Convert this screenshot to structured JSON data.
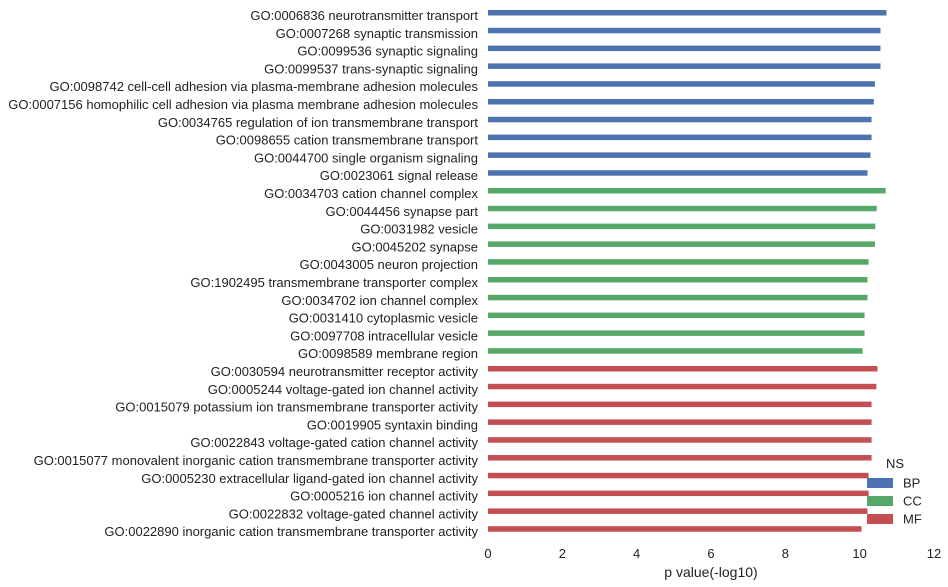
{
  "chart_data": {
    "type": "bar",
    "orientation": "horizontal",
    "xlabel": "p value(-log10)",
    "ylabel": "",
    "xlim": [
      0,
      12
    ],
    "xticks": [
      0,
      2,
      4,
      6,
      8,
      10,
      12
    ],
    "grid": false,
    "legend": {
      "title": "NS",
      "placement": "lower-right",
      "entries": [
        {
          "name": "BP",
          "color": "#4c72b0"
        },
        {
          "name": "CC",
          "color": "#55a868"
        },
        {
          "name": "MF",
          "color": "#c44e52"
        }
      ]
    },
    "categories": [
      {
        "label": "GO:0006836 neurotransmitter transport",
        "group": "BP",
        "value": 10.72
      },
      {
        "label": "GO:0007268 synaptic transmission",
        "group": "BP",
        "value": 10.56
      },
      {
        "label": "GO:0099536 synaptic signaling",
        "group": "BP",
        "value": 10.56
      },
      {
        "label": "GO:0099537 trans-synaptic signaling",
        "group": "BP",
        "value": 10.56
      },
      {
        "label": "GO:0098742 cell-cell adhesion via plasma-membrane adhesion molecules",
        "group": "BP",
        "value": 10.41
      },
      {
        "label": "GO:0007156 homophilic cell adhesion via plasma membrane adhesion molecules",
        "group": "BP",
        "value": 10.38
      },
      {
        "label": "GO:0034765 regulation of ion transmembrane transport",
        "group": "BP",
        "value": 10.32
      },
      {
        "label": "GO:0098655 cation transmembrane transport",
        "group": "BP",
        "value": 10.32
      },
      {
        "label": "GO:0044700 single organism signaling",
        "group": "BP",
        "value": 10.29
      },
      {
        "label": "GO:0023061 signal release",
        "group": "BP",
        "value": 10.21
      },
      {
        "label": "GO:0034703 cation channel complex",
        "group": "CC",
        "value": 10.7
      },
      {
        "label": "GO:0044456 synapse part",
        "group": "CC",
        "value": 10.46
      },
      {
        "label": "GO:0031982 vesicle",
        "group": "CC",
        "value": 10.42
      },
      {
        "label": "GO:0045202 synapse",
        "group": "CC",
        "value": 10.41
      },
      {
        "label": "GO:0043005 neuron projection",
        "group": "CC",
        "value": 10.24
      },
      {
        "label": "GO:1902495 transmembrane transporter complex",
        "group": "CC",
        "value": 10.21
      },
      {
        "label": "GO:0034702 ion channel complex",
        "group": "CC",
        "value": 10.21
      },
      {
        "label": "GO:0031410 cytoplasmic vesicle",
        "group": "CC",
        "value": 10.13
      },
      {
        "label": "GO:0097708 intracellular vesicle",
        "group": "CC",
        "value": 10.13
      },
      {
        "label": "GO:0098589 membrane region",
        "group": "CC",
        "value": 10.08
      },
      {
        "label": "GO:0030594 neurotransmitter receptor activity",
        "group": "MF",
        "value": 10.48
      },
      {
        "label": "GO:0005244 voltage-gated ion channel activity",
        "group": "MF",
        "value": 10.45
      },
      {
        "label": "GO:0015079 potassium ion transmembrane transporter activity",
        "group": "MF",
        "value": 10.32
      },
      {
        "label": "GO:0019905 syntaxin binding",
        "group": "MF",
        "value": 10.32
      },
      {
        "label": "GO:0022843 voltage-gated cation channel activity",
        "group": "MF",
        "value": 10.32
      },
      {
        "label": "GO:0015077 monovalent inorganic cation transmembrane transporter activity",
        "group": "MF",
        "value": 10.32
      },
      {
        "label": "GO:0005230 extracellular ligand-gated ion channel activity",
        "group": "MF",
        "value": 10.24
      },
      {
        "label": "GO:0005216 ion channel activity",
        "group": "MF",
        "value": 10.24
      },
      {
        "label": "GO:0022832 voltage-gated channel activity",
        "group": "MF",
        "value": 10.21
      },
      {
        "label": "GO:0022890 inorganic cation transmembrane transporter activity",
        "group": "MF",
        "value": 10.05
      }
    ]
  }
}
